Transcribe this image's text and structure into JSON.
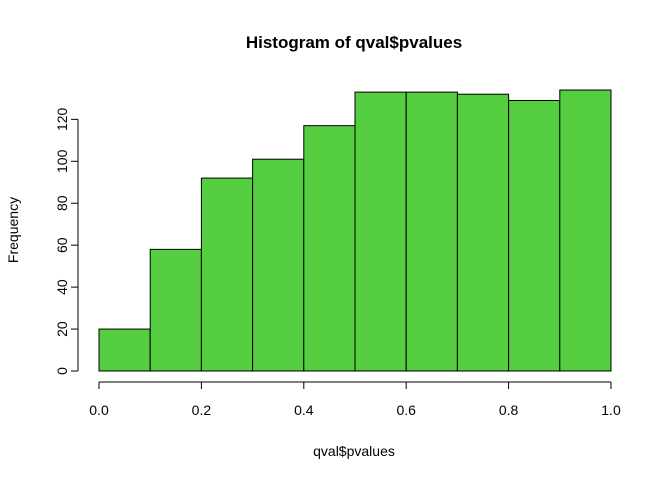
{
  "chart_data": {
    "type": "bar",
    "title": "Histogram of qval$pvalues",
    "xlabel": "qval$pvalues",
    "ylabel": "Frequency",
    "bin_edges": [
      0.0,
      0.1,
      0.2,
      0.3,
      0.4,
      0.5,
      0.6,
      0.7,
      0.8,
      0.9,
      1.0
    ],
    "values": [
      20,
      58,
      92,
      101,
      117,
      133,
      133,
      132,
      129,
      134
    ],
    "xlim": [
      0,
      1
    ],
    "ylim": [
      0,
      134
    ],
    "x_ticks": [
      "0.0",
      "0.2",
      "0.4",
      "0.6",
      "0.8",
      "1.0"
    ],
    "y_ticks": [
      "0",
      "20",
      "40",
      "60",
      "80",
      "100",
      "120"
    ],
    "bar_color": "#54cd41",
    "grid": false
  }
}
